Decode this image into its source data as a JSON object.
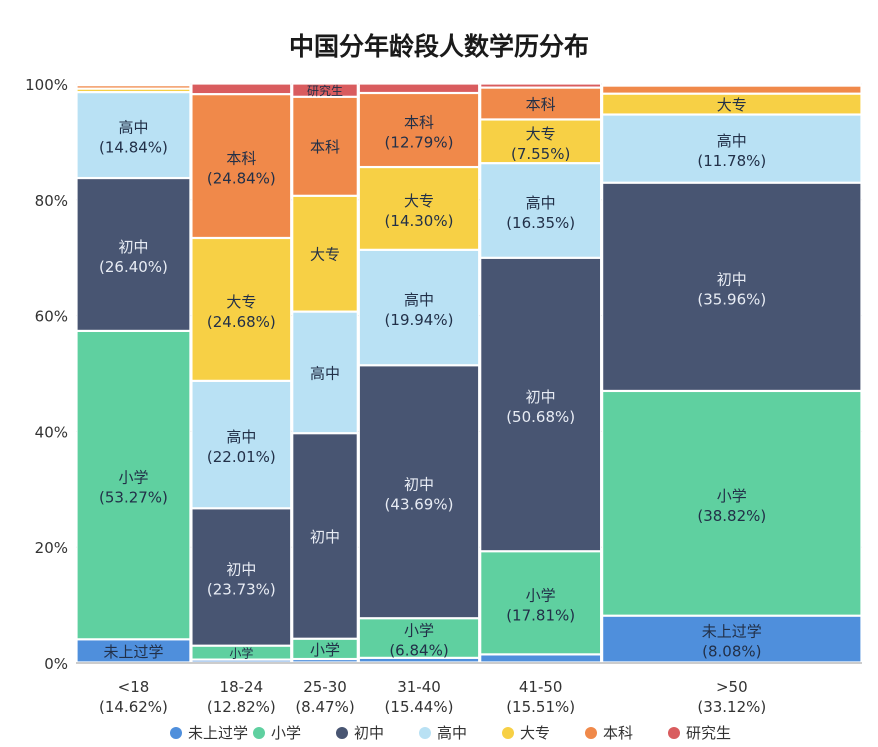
{
  "chart_data": {
    "type": "bar",
    "variant": "mekko-100-percent-stacked",
    "title": "中国分年龄段人数学历分布",
    "xlabel": "",
    "ylabel": "",
    "ylim": [
      0,
      100
    ],
    "y_ticks": [
      "0%",
      "20%",
      "40%",
      "60%",
      "80%",
      "100%"
    ],
    "legend_position": "bottom",
    "series": [
      {
        "name": "未上过学",
        "color": "#4f8fdc"
      },
      {
        "name": "小学",
        "color": "#5fd0a0"
      },
      {
        "name": "初中",
        "color": "#485572"
      },
      {
        "name": "高中",
        "color": "#b9e1f4"
      },
      {
        "name": "大专",
        "color": "#f7d045"
      },
      {
        "name": "本科",
        "color": "#f0894a"
      },
      {
        "name": "研究生",
        "color": "#d95c5e"
      }
    ],
    "groups": [
      {
        "label": "<18",
        "share_label": "(14.62%)",
        "share": 14.62,
        "values": [
          4.0,
          53.27,
          26.4,
          14.84,
          0.6,
          0.6,
          0.29
        ],
        "segment_labels": [
          [
            "未上过学",
            ""
          ],
          [
            "小学",
            "(53.27%)"
          ],
          [
            "初中",
            "(26.40%)"
          ],
          [
            "高中",
            "(14.84%)"
          ],
          [
            "",
            ""
          ],
          [
            "",
            ""
          ],
          [
            "",
            ""
          ]
        ]
      },
      {
        "label": "18-24",
        "share_label": "(12.82%)",
        "share": 12.82,
        "values": [
          0.5,
          2.4,
          23.73,
          22.01,
          24.68,
          24.84,
          1.84
        ],
        "segment_labels": [
          [
            "",
            ""
          ],
          [
            "小学",
            ""
          ],
          [
            "初中",
            "(23.73%)"
          ],
          [
            "高中",
            "(22.01%)"
          ],
          [
            "大专",
            "(24.68%)"
          ],
          [
            "本科",
            "(24.84%)"
          ],
          [
            "",
            ""
          ]
        ]
      },
      {
        "label": "25-30",
        "share_label": "(8.47%)",
        "share": 8.47,
        "values": [
          0.6,
          3.5,
          35.5,
          21.0,
          20.0,
          17.1,
          2.3
        ],
        "segment_labels": [
          [
            "",
            ""
          ],
          [
            "小学",
            ""
          ],
          [
            "初中",
            ""
          ],
          [
            "高中",
            ""
          ],
          [
            "大专",
            ""
          ],
          [
            "本科",
            ""
          ],
          [
            "研究生",
            ""
          ]
        ]
      },
      {
        "label": "31-40",
        "share_label": "(15.44%)",
        "share": 15.44,
        "values": [
          0.8,
          6.84,
          43.69,
          19.94,
          14.3,
          12.79,
          1.64
        ],
        "segment_labels": [
          [
            "",
            ""
          ],
          [
            "小学",
            "(6.84%)"
          ],
          [
            "初中",
            "(43.69%)"
          ],
          [
            "高中",
            "(19.94%)"
          ],
          [
            "大专",
            "(14.30%)"
          ],
          [
            "本科",
            "(12.79%)"
          ],
          [
            "",
            ""
          ]
        ]
      },
      {
        "label": "41-50",
        "share_label": "(15.51%)",
        "share": 15.51,
        "values": [
          1.4,
          17.81,
          50.68,
          16.35,
          7.55,
          5.5,
          0.71
        ],
        "segment_labels": [
          [
            "",
            ""
          ],
          [
            "小学",
            "(17.81%)"
          ],
          [
            "初中",
            "(50.68%)"
          ],
          [
            "高中",
            "(16.35%)"
          ],
          [
            "大专",
            "(7.55%)"
          ],
          [
            "本科",
            ""
          ],
          [
            "",
            ""
          ]
        ]
      },
      {
        "label": ">50",
        "share_label": "(33.12%)",
        "share": 33.12,
        "values": [
          8.08,
          38.82,
          35.96,
          11.78,
          3.6,
          1.4,
          0.36
        ],
        "segment_labels": [
          [
            "未上过学",
            "(8.08%)"
          ],
          [
            "小学",
            "(38.82%)"
          ],
          [
            "初中",
            "(35.96%)"
          ],
          [
            "高中",
            "(11.78%)"
          ],
          [
            "大专",
            ""
          ],
          [
            "",
            ""
          ],
          [
            "",
            ""
          ]
        ]
      }
    ]
  }
}
